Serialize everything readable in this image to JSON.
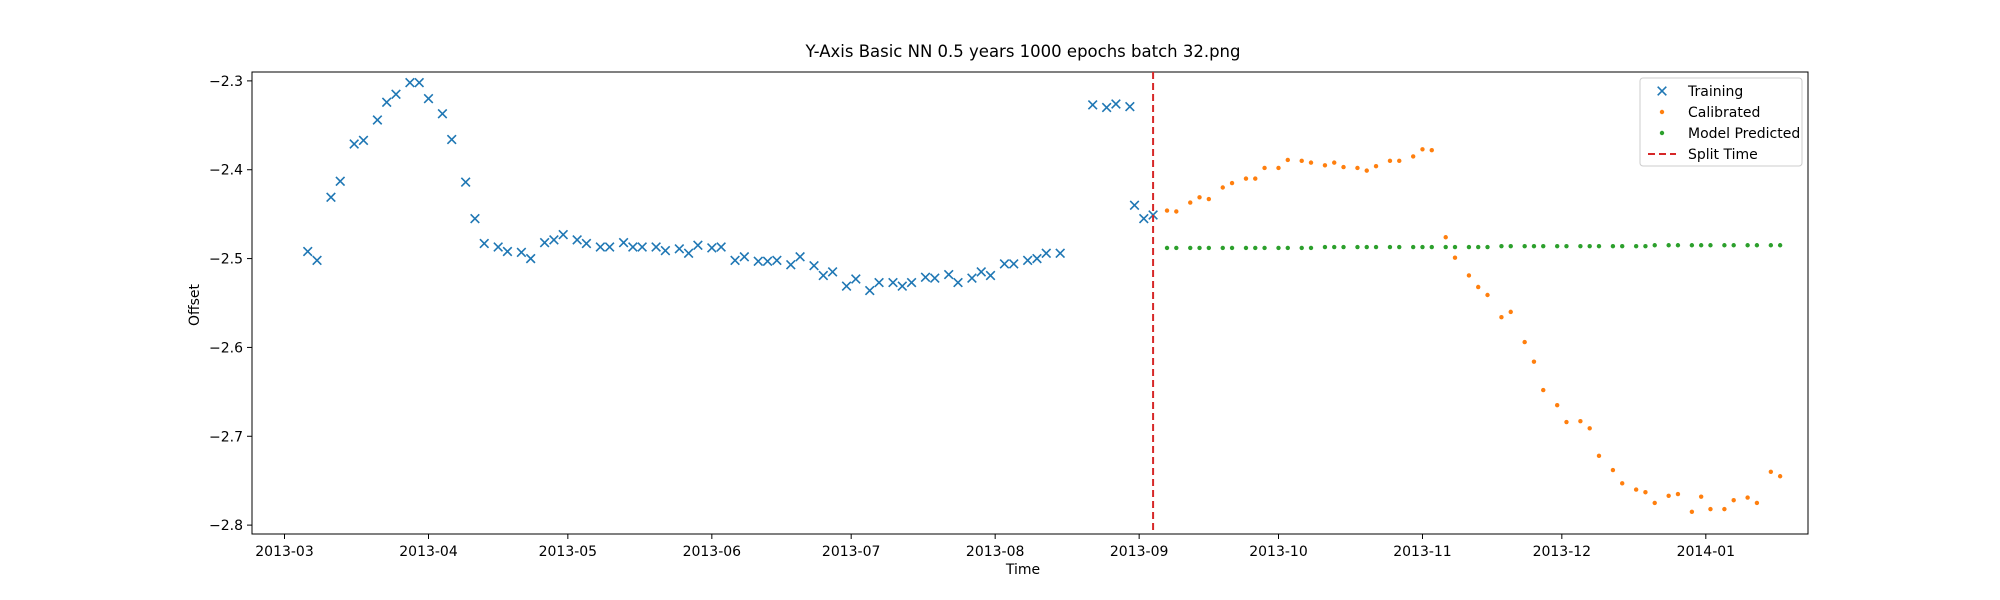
{
  "chart_data": {
    "type": "scatter",
    "title": "Y-Axis Basic NN 0.5 years 1000 epochs batch 32.png",
    "xlabel": "Time",
    "ylabel": "Offset",
    "xlim": [
      "2013-02-22",
      "2014-01-23"
    ],
    "ylim": [
      -2.81,
      -2.29
    ],
    "x_ticks": [
      "2013-03-01",
      "2013-04-01",
      "2013-05-01",
      "2013-06-01",
      "2013-07-01",
      "2013-08-01",
      "2013-09-01",
      "2013-10-01",
      "2013-11-01",
      "2013-12-01",
      "2014-01-01"
    ],
    "x_tick_labels": [
      "2013-03",
      "2013-04",
      "2013-05",
      "2013-06",
      "2013-07",
      "2013-08",
      "2013-09",
      "2013-10",
      "2013-11",
      "2013-12",
      "2014-01"
    ],
    "y_ticks": [
      -2.3,
      -2.4,
      -2.5,
      -2.6,
      -2.7,
      -2.8
    ],
    "y_tick_labels": [
      "−2.3",
      "−2.4",
      "−2.5",
      "−2.6",
      "−2.7",
      "−2.8"
    ],
    "legend_position": "top-right",
    "grid": false,
    "split_time": "2013-09-04",
    "series": [
      {
        "name": "Training",
        "marker": "x",
        "color": "#1f77b4",
        "points": [
          [
            "2013-03-06",
            -2.492
          ],
          [
            "2013-03-08",
            -2.502
          ],
          [
            "2013-03-11",
            -2.431
          ],
          [
            "2013-03-13",
            -2.413
          ],
          [
            "2013-03-16",
            -2.371
          ],
          [
            "2013-03-18",
            -2.367
          ],
          [
            "2013-03-21",
            -2.344
          ],
          [
            "2013-03-23",
            -2.324
          ],
          [
            "2013-03-25",
            -2.315
          ],
          [
            "2013-03-28",
            -2.302
          ],
          [
            "2013-03-30",
            -2.302
          ],
          [
            "2013-04-01",
            -2.32
          ],
          [
            "2013-04-04",
            -2.337
          ],
          [
            "2013-04-06",
            -2.366
          ],
          [
            "2013-04-09",
            -2.414
          ],
          [
            "2013-04-11",
            -2.455
          ],
          [
            "2013-04-13",
            -2.483
          ],
          [
            "2013-04-16",
            -2.487
          ],
          [
            "2013-04-18",
            -2.492
          ],
          [
            "2013-04-21",
            -2.493
          ],
          [
            "2013-04-23",
            -2.5
          ],
          [
            "2013-04-26",
            -2.482
          ],
          [
            "2013-04-28",
            -2.479
          ],
          [
            "2013-04-30",
            -2.473
          ],
          [
            "2013-05-03",
            -2.479
          ],
          [
            "2013-05-05",
            -2.483
          ],
          [
            "2013-05-08",
            -2.487
          ],
          [
            "2013-05-10",
            -2.487
          ],
          [
            "2013-05-13",
            -2.482
          ],
          [
            "2013-05-15",
            -2.487
          ],
          [
            "2013-05-17",
            -2.487
          ],
          [
            "2013-05-20",
            -2.487
          ],
          [
            "2013-05-22",
            -2.491
          ],
          [
            "2013-05-25",
            -2.489
          ],
          [
            "2013-05-27",
            -2.494
          ],
          [
            "2013-05-29",
            -2.485
          ],
          [
            "2013-06-01",
            -2.488
          ],
          [
            "2013-06-03",
            -2.487
          ],
          [
            "2013-06-06",
            -2.502
          ],
          [
            "2013-06-08",
            -2.498
          ],
          [
            "2013-06-11",
            -2.503
          ],
          [
            "2013-06-13",
            -2.503
          ],
          [
            "2013-06-15",
            -2.502
          ],
          [
            "2013-06-18",
            -2.507
          ],
          [
            "2013-06-20",
            -2.498
          ],
          [
            "2013-06-23",
            -2.508
          ],
          [
            "2013-06-25",
            -2.519
          ],
          [
            "2013-06-27",
            -2.515
          ],
          [
            "2013-06-30",
            -2.531
          ],
          [
            "2013-07-02",
            -2.523
          ],
          [
            "2013-07-05",
            -2.536
          ],
          [
            "2013-07-07",
            -2.527
          ],
          [
            "2013-07-10",
            -2.527
          ],
          [
            "2013-07-12",
            -2.531
          ],
          [
            "2013-07-14",
            -2.527
          ],
          [
            "2013-07-17",
            -2.521
          ],
          [
            "2013-07-19",
            -2.522
          ],
          [
            "2013-07-22",
            -2.518
          ],
          [
            "2013-07-24",
            -2.527
          ],
          [
            "2013-07-27",
            -2.522
          ],
          [
            "2013-07-29",
            -2.515
          ],
          [
            "2013-07-31",
            -2.519
          ],
          [
            "2013-08-03",
            -2.506
          ],
          [
            "2013-08-05",
            -2.506
          ],
          [
            "2013-08-08",
            -2.502
          ],
          [
            "2013-08-10",
            -2.5
          ],
          [
            "2013-08-12",
            -2.494
          ],
          [
            "2013-08-15",
            -2.494
          ],
          [
            "2013-08-22",
            -2.327
          ],
          [
            "2013-08-25",
            -2.33
          ],
          [
            "2013-08-27",
            -2.326
          ],
          [
            "2013-08-30",
            -2.329
          ],
          [
            "2013-08-31",
            -2.44
          ],
          [
            "2013-09-02",
            -2.455
          ],
          [
            "2013-09-04",
            -2.451
          ]
        ]
      },
      {
        "name": "Calibrated",
        "marker": "dot",
        "color": "#ff7f0e",
        "points": [
          [
            "2013-09-07",
            -2.446
          ],
          [
            "2013-09-09",
            -2.447
          ],
          [
            "2013-09-12",
            -2.437
          ],
          [
            "2013-09-14",
            -2.431
          ],
          [
            "2013-09-16",
            -2.433
          ],
          [
            "2013-09-19",
            -2.42
          ],
          [
            "2013-09-21",
            -2.415
          ],
          [
            "2013-09-24",
            -2.41
          ],
          [
            "2013-09-26",
            -2.41
          ],
          [
            "2013-09-28",
            -2.398
          ],
          [
            "2013-10-01",
            -2.398
          ],
          [
            "2013-10-03",
            -2.389
          ],
          [
            "2013-10-06",
            -2.39
          ],
          [
            "2013-10-08",
            -2.392
          ],
          [
            "2013-10-11",
            -2.395
          ],
          [
            "2013-10-13",
            -2.392
          ],
          [
            "2013-10-15",
            -2.397
          ],
          [
            "2013-10-18",
            -2.398
          ],
          [
            "2013-10-20",
            -2.401
          ],
          [
            "2013-10-22",
            -2.396
          ],
          [
            "2013-10-25",
            -2.39
          ],
          [
            "2013-10-27",
            -2.39
          ],
          [
            "2013-10-30",
            -2.385
          ],
          [
            "2013-11-01",
            -2.377
          ],
          [
            "2013-11-03",
            -2.378
          ],
          [
            "2013-11-06",
            -2.476
          ],
          [
            "2013-11-08",
            -2.499
          ],
          [
            "2013-11-11",
            -2.519
          ],
          [
            "2013-11-13",
            -2.532
          ],
          [
            "2013-11-15",
            -2.541
          ],
          [
            "2013-11-18",
            -2.566
          ],
          [
            "2013-11-20",
            -2.56
          ],
          [
            "2013-11-23",
            -2.594
          ],
          [
            "2013-11-25",
            -2.616
          ],
          [
            "2013-11-27",
            -2.648
          ],
          [
            "2013-11-30",
            -2.665
          ],
          [
            "2013-12-02",
            -2.684
          ],
          [
            "2013-12-05",
            -2.683
          ],
          [
            "2013-12-07",
            -2.691
          ],
          [
            "2013-12-09",
            -2.722
          ],
          [
            "2013-12-12",
            -2.738
          ],
          [
            "2013-12-14",
            -2.753
          ],
          [
            "2013-12-17",
            -2.76
          ],
          [
            "2013-12-19",
            -2.763
          ],
          [
            "2013-12-21",
            -2.775
          ],
          [
            "2013-12-24",
            -2.767
          ],
          [
            "2013-12-26",
            -2.765
          ],
          [
            "2013-12-29",
            -2.785
          ],
          [
            "2013-12-31",
            -2.768
          ],
          [
            "2014-01-02",
            -2.782
          ],
          [
            "2014-01-05",
            -2.782
          ],
          [
            "2014-01-07",
            -2.772
          ],
          [
            "2014-01-10",
            -2.769
          ],
          [
            "2014-01-12",
            -2.775
          ],
          [
            "2014-01-15",
            -2.74
          ],
          [
            "2014-01-17",
            -2.745
          ]
        ]
      },
      {
        "name": "Model Predicted",
        "marker": "dot",
        "color": "#2ca02c",
        "points": [
          [
            "2013-09-07",
            -2.488
          ],
          [
            "2013-09-09",
            -2.488
          ],
          [
            "2013-09-12",
            -2.488
          ],
          [
            "2013-09-14",
            -2.488
          ],
          [
            "2013-09-16",
            -2.488
          ],
          [
            "2013-09-19",
            -2.488
          ],
          [
            "2013-09-21",
            -2.488
          ],
          [
            "2013-09-24",
            -2.488
          ],
          [
            "2013-09-26",
            -2.488
          ],
          [
            "2013-09-28",
            -2.488
          ],
          [
            "2013-10-01",
            -2.488
          ],
          [
            "2013-10-03",
            -2.488
          ],
          [
            "2013-10-06",
            -2.488
          ],
          [
            "2013-10-08",
            -2.488
          ],
          [
            "2013-10-11",
            -2.487
          ],
          [
            "2013-10-13",
            -2.487
          ],
          [
            "2013-10-15",
            -2.487
          ],
          [
            "2013-10-18",
            -2.487
          ],
          [
            "2013-10-20",
            -2.487
          ],
          [
            "2013-10-22",
            -2.487
          ],
          [
            "2013-10-25",
            -2.487
          ],
          [
            "2013-10-27",
            -2.487
          ],
          [
            "2013-10-30",
            -2.487
          ],
          [
            "2013-11-01",
            -2.487
          ],
          [
            "2013-11-03",
            -2.487
          ],
          [
            "2013-11-06",
            -2.487
          ],
          [
            "2013-11-08",
            -2.487
          ],
          [
            "2013-11-11",
            -2.487
          ],
          [
            "2013-11-13",
            -2.487
          ],
          [
            "2013-11-15",
            -2.487
          ],
          [
            "2013-11-18",
            -2.486
          ],
          [
            "2013-11-20",
            -2.486
          ],
          [
            "2013-11-23",
            -2.486
          ],
          [
            "2013-11-25",
            -2.486
          ],
          [
            "2013-11-27",
            -2.486
          ],
          [
            "2013-11-30",
            -2.486
          ],
          [
            "2013-12-02",
            -2.486
          ],
          [
            "2013-12-05",
            -2.486
          ],
          [
            "2013-12-07",
            -2.486
          ],
          [
            "2013-12-09",
            -2.486
          ],
          [
            "2013-12-12",
            -2.486
          ],
          [
            "2013-12-14",
            -2.486
          ],
          [
            "2013-12-17",
            -2.486
          ],
          [
            "2013-12-19",
            -2.486
          ],
          [
            "2013-12-21",
            -2.485
          ],
          [
            "2013-12-24",
            -2.485
          ],
          [
            "2013-12-26",
            -2.485
          ],
          [
            "2013-12-29",
            -2.485
          ],
          [
            "2013-12-31",
            -2.485
          ],
          [
            "2014-01-02",
            -2.485
          ],
          [
            "2014-01-05",
            -2.485
          ],
          [
            "2014-01-07",
            -2.485
          ],
          [
            "2014-01-10",
            -2.485
          ],
          [
            "2014-01-12",
            -2.485
          ],
          [
            "2014-01-15",
            -2.485
          ],
          [
            "2014-01-17",
            -2.485
          ]
        ]
      },
      {
        "name": "Split Time",
        "marker": "dashed-line",
        "color": "#d62728"
      }
    ]
  }
}
